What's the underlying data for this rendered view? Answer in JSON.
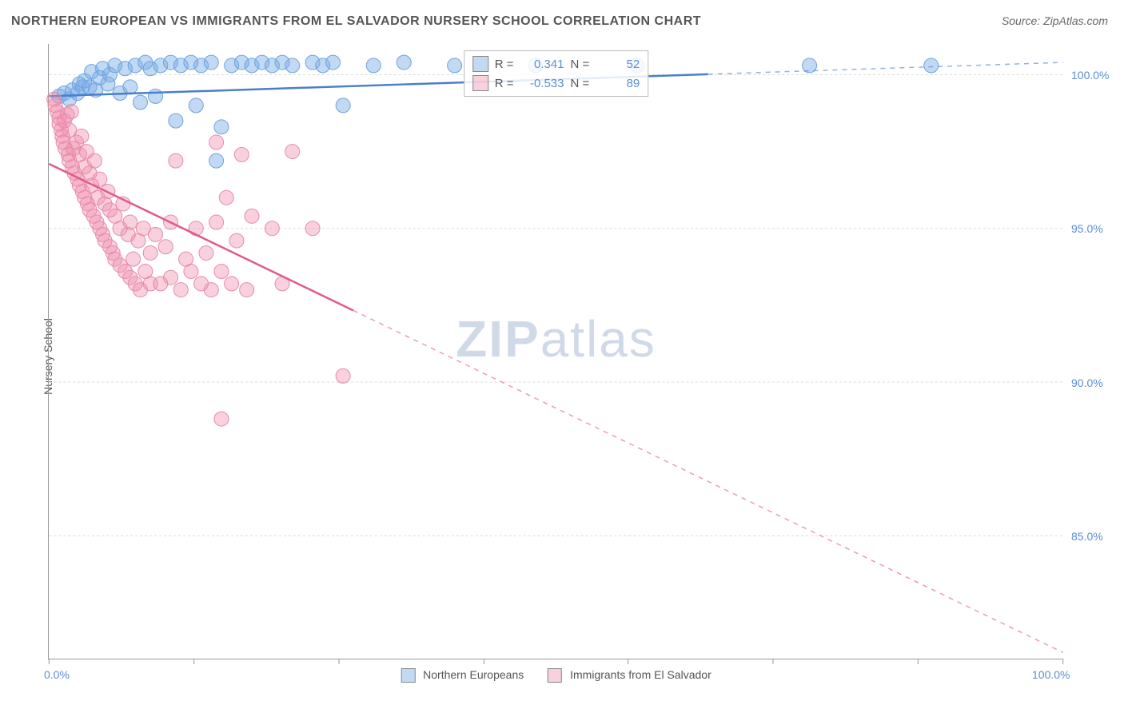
{
  "title": "NORTHERN EUROPEAN VS IMMIGRANTS FROM EL SALVADOR NURSERY SCHOOL CORRELATION CHART",
  "source_label": "Source: ZipAtlas.com",
  "ylabel": "Nursery School",
  "watermark": {
    "bold": "ZIP",
    "rest": "atlas"
  },
  "chart": {
    "type": "scatter",
    "background_color": "#ffffff",
    "grid_color": "#d9d9d9",
    "axis_color": "#999999",
    "label_color": "#5b8dd6",
    "title_fontsize": 16,
    "label_fontsize": 14,
    "xlim": [
      0,
      100
    ],
    "ylim": [
      81,
      101
    ],
    "x_ticks": [
      0,
      14.3,
      28.6,
      42.9,
      57.1,
      71.4,
      85.7,
      100
    ],
    "x_tick_labels": {
      "0": "0.0%",
      "100": "100.0%"
    },
    "y_ticks": [
      85,
      90,
      95,
      100
    ],
    "y_tick_labels": {
      "85": "85.0%",
      "90": "90.0%",
      "95": "95.0%",
      "100": "100.0%"
    },
    "series": [
      {
        "name": "Northern Europeans",
        "color_fill": "rgba(120,170,230,0.45)",
        "color_stroke": "#6fa3de",
        "marker_radius": 9,
        "trend": {
          "x1": 0,
          "y1": 99.3,
          "x2": 100,
          "y2": 100.4,
          "stroke": "#4a7fc9",
          "width": 2.5,
          "dash_after_x": 65
        },
        "R_label": "R =",
        "R_value": "0.341",
        "N_label": "N =",
        "N_value": "52",
        "points": [
          [
            1,
            99.3
          ],
          [
            1.5,
            99.4
          ],
          [
            2,
            99.2
          ],
          [
            2.3,
            99.5
          ],
          [
            2.8,
            99.4
          ],
          [
            3,
            99.7
          ],
          [
            3.3,
            99.6
          ],
          [
            3.5,
            99.8
          ],
          [
            4,
            99.6
          ],
          [
            4.2,
            100.1
          ],
          [
            4.6,
            99.5
          ],
          [
            5,
            99.9
          ],
          [
            5.3,
            100.2
          ],
          [
            5.8,
            99.7
          ],
          [
            6,
            100.0
          ],
          [
            6.5,
            100.3
          ],
          [
            7,
            99.4
          ],
          [
            7.5,
            100.2
          ],
          [
            8,
            99.6
          ],
          [
            8.5,
            100.3
          ],
          [
            9,
            99.1
          ],
          [
            9.5,
            100.4
          ],
          [
            10,
            100.2
          ],
          [
            10.5,
            99.3
          ],
          [
            11,
            100.3
          ],
          [
            12,
            100.4
          ],
          [
            12.5,
            98.5
          ],
          [
            13,
            100.3
          ],
          [
            14,
            100.4
          ],
          [
            14.5,
            99.0
          ],
          [
            15,
            100.3
          ],
          [
            16,
            100.4
          ],
          [
            16.5,
            97.2
          ],
          [
            17,
            98.3
          ],
          [
            18,
            100.3
          ],
          [
            19,
            100.4
          ],
          [
            20,
            100.3
          ],
          [
            21,
            100.4
          ],
          [
            22,
            100.3
          ],
          [
            23,
            100.4
          ],
          [
            24,
            100.3
          ],
          [
            26,
            100.4
          ],
          [
            27,
            100.3
          ],
          [
            28,
            100.4
          ],
          [
            29,
            99.0
          ],
          [
            32,
            100.3
          ],
          [
            35,
            100.4
          ],
          [
            40,
            100.3
          ],
          [
            48,
            100.3
          ],
          [
            58,
            100.3
          ],
          [
            75,
            100.3
          ],
          [
            87,
            100.3
          ]
        ]
      },
      {
        "name": "Immigrants from El Salvador",
        "color_fill": "rgba(240,140,170,0.40)",
        "color_stroke": "#e68aac",
        "marker_radius": 9,
        "trend": {
          "x1": 0,
          "y1": 97.1,
          "x2": 100,
          "y2": 81.2,
          "stroke": "#e05a8a",
          "width": 2.5,
          "dash_after_x": 30
        },
        "R_label": "R =",
        "R_value": "-0.533",
        "N_label": "N =",
        "N_value": "89",
        "points": [
          [
            0.5,
            99.2
          ],
          [
            0.6,
            99.0
          ],
          [
            0.8,
            98.8
          ],
          [
            1,
            98.6
          ],
          [
            1,
            98.4
          ],
          [
            1.2,
            98.2
          ],
          [
            1.3,
            98.0
          ],
          [
            1.4,
            97.8
          ],
          [
            1.5,
            98.5
          ],
          [
            1.6,
            97.6
          ],
          [
            1.8,
            98.7
          ],
          [
            1.9,
            97.4
          ],
          [
            2,
            98.2
          ],
          [
            2,
            97.2
          ],
          [
            2.2,
            98.8
          ],
          [
            2.3,
            97.0
          ],
          [
            2.4,
            97.6
          ],
          [
            2.5,
            96.8
          ],
          [
            2.7,
            97.8
          ],
          [
            2.8,
            96.6
          ],
          [
            3,
            97.4
          ],
          [
            3,
            96.4
          ],
          [
            3.2,
            98.0
          ],
          [
            3.3,
            96.2
          ],
          [
            3.5,
            97.0
          ],
          [
            3.5,
            96.0
          ],
          [
            3.7,
            97.5
          ],
          [
            3.8,
            95.8
          ],
          [
            4,
            96.8
          ],
          [
            4,
            95.6
          ],
          [
            4.2,
            96.4
          ],
          [
            4.4,
            95.4
          ],
          [
            4.5,
            97.2
          ],
          [
            4.7,
            95.2
          ],
          [
            4.8,
            96.0
          ],
          [
            5,
            95.0
          ],
          [
            5,
            96.6
          ],
          [
            5.3,
            94.8
          ],
          [
            5.5,
            95.8
          ],
          [
            5.5,
            94.6
          ],
          [
            5.8,
            96.2
          ],
          [
            6,
            94.4
          ],
          [
            6,
            95.6
          ],
          [
            6.3,
            94.2
          ],
          [
            6.5,
            95.4
          ],
          [
            6.5,
            94.0
          ],
          [
            7,
            95.0
          ],
          [
            7,
            93.8
          ],
          [
            7.3,
            95.8
          ],
          [
            7.5,
            93.6
          ],
          [
            7.8,
            94.8
          ],
          [
            8,
            93.4
          ],
          [
            8,
            95.2
          ],
          [
            8.3,
            94.0
          ],
          [
            8.5,
            93.2
          ],
          [
            8.8,
            94.6
          ],
          [
            9,
            93.0
          ],
          [
            9.3,
            95.0
          ],
          [
            9.5,
            93.6
          ],
          [
            10,
            94.2
          ],
          [
            10,
            93.2
          ],
          [
            10.5,
            94.8
          ],
          [
            11,
            93.2
          ],
          [
            11.5,
            94.4
          ],
          [
            12,
            93.4
          ],
          [
            12,
            95.2
          ],
          [
            12.5,
            97.2
          ],
          [
            13,
            93.0
          ],
          [
            13.5,
            94.0
          ],
          [
            14,
            93.6
          ],
          [
            14.5,
            95.0
          ],
          [
            15,
            93.2
          ],
          [
            15.5,
            94.2
          ],
          [
            16,
            93.0
          ],
          [
            16.5,
            95.2
          ],
          [
            16.5,
            97.8
          ],
          [
            17,
            93.6
          ],
          [
            17,
            88.8
          ],
          [
            17.5,
            96.0
          ],
          [
            18,
            93.2
          ],
          [
            18.5,
            94.6
          ],
          [
            19,
            97.4
          ],
          [
            19.5,
            93.0
          ],
          [
            20,
            95.4
          ],
          [
            22,
            95.0
          ],
          [
            23,
            93.2
          ],
          [
            24,
            97.5
          ],
          [
            26,
            95.0
          ],
          [
            29,
            90.2
          ]
        ]
      }
    ]
  },
  "legend": {
    "series1_label": "Northern Europeans",
    "series2_label": "Immigrants from El Salvador"
  }
}
